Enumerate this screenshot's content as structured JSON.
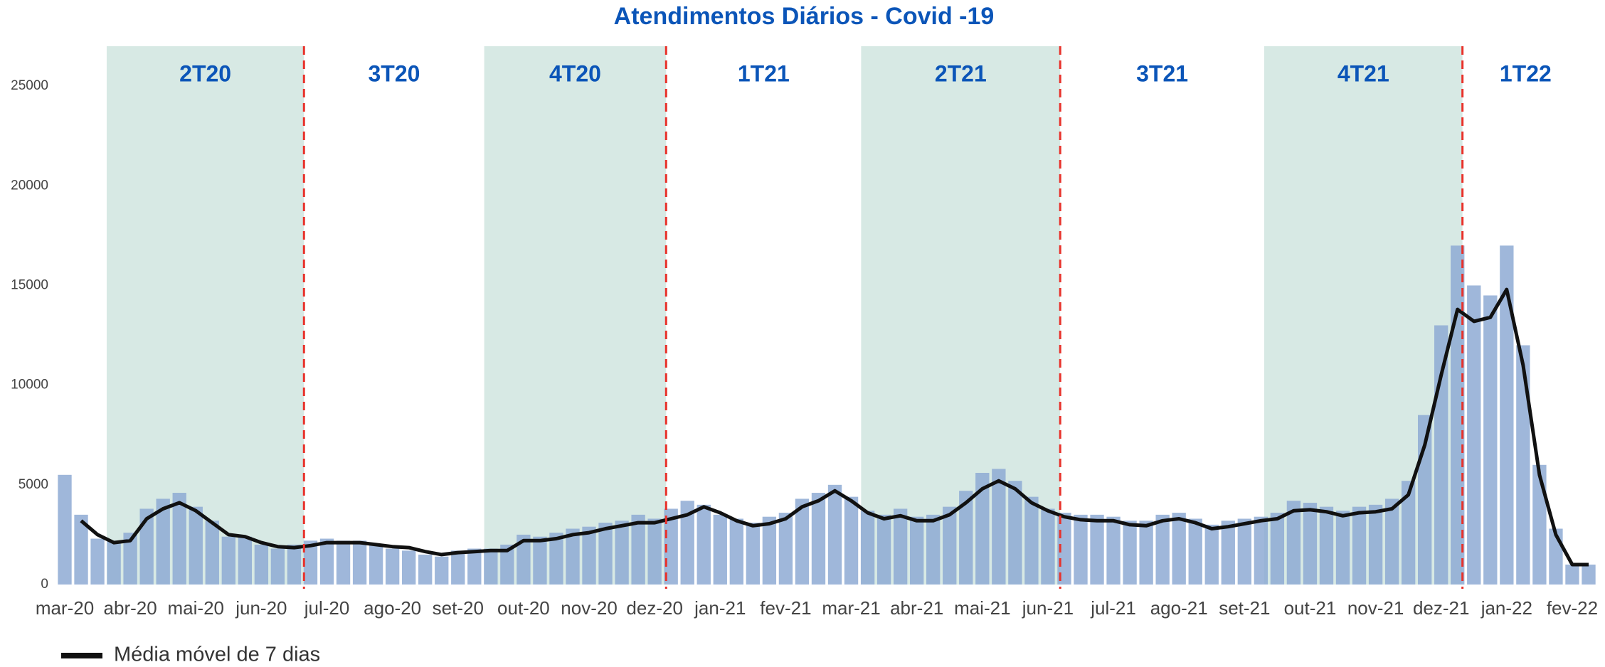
{
  "chart_data": {
    "type": "bar",
    "title": "Atendimentos Diários - Covid -19",
    "categories": [
      "mar-20",
      null,
      null,
      null,
      "abr-20",
      null,
      null,
      null,
      "mai-20",
      null,
      null,
      null,
      "jun-20",
      null,
      null,
      null,
      "jul-20",
      null,
      null,
      null,
      "ago-20",
      null,
      null,
      null,
      "set-20",
      null,
      null,
      null,
      "out-20",
      null,
      null,
      null,
      "nov-20",
      null,
      null,
      null,
      "dez-20",
      null,
      null,
      null,
      "jan-21",
      null,
      null,
      null,
      "fev-21",
      null,
      null,
      null,
      "mar-21",
      null,
      null,
      null,
      "abr-21",
      null,
      null,
      null,
      "mai-21",
      null,
      null,
      null,
      "jun-21",
      null,
      null,
      null,
      "jul-21",
      null,
      null,
      null,
      "ago-21",
      null,
      null,
      null,
      "set-21",
      null,
      null,
      null,
      "out-21",
      null,
      null,
      null,
      "nov-21",
      null,
      null,
      null,
      "dez-21",
      null,
      null,
      null,
      "jan-22",
      null,
      null,
      null,
      "fev-22",
      null
    ],
    "series": [
      {
        "type": "bar",
        "color": "#8eaad3",
        "values": [
          5500,
          3500,
          2300,
          2200,
          2600,
          3800,
          4300,
          4600,
          3900,
          3200,
          2400,
          2400,
          2000,
          1800,
          2000,
          2200,
          2300,
          2200,
          2200,
          2000,
          1800,
          1700,
          1500,
          1400,
          1700,
          1800,
          1800,
          2000,
          2500,
          2400,
          2600,
          2800,
          2900,
          3100,
          3200,
          3500,
          3300,
          3800,
          4200,
          4000,
          3500,
          3300,
          3100,
          3400,
          3600,
          4300,
          4600,
          5000,
          4400,
          3700,
          3500,
          3800,
          3400,
          3500,
          3900,
          4700,
          5600,
          5800,
          5200,
          4400,
          3800,
          3600,
          3500,
          3500,
          3400,
          3200,
          3200,
          3500,
          3600,
          3300,
          3000,
          3200,
          3300,
          3400,
          3600,
          4200,
          4100,
          3900,
          3700,
          3900,
          4000,
          4300,
          5200,
          8500,
          13000,
          17000,
          15000,
          14500,
          17000,
          12000,
          6000,
          2800,
          1000,
          1000
        ]
      },
      {
        "type": "line",
        "name": "Média móvel de 7 dias",
        "color": "#111111",
        "values": [
          null,
          3200,
          2500,
          2100,
          2200,
          3300,
          3800,
          4100,
          3700,
          3100,
          2500,
          2400,
          2100,
          1900,
          1850,
          1950,
          2100,
          2100,
          2100,
          2000,
          1900,
          1850,
          1650,
          1500,
          1600,
          1650,
          1700,
          1700,
          2200,
          2200,
          2300,
          2500,
          2600,
          2800,
          2950,
          3100,
          3100,
          3300,
          3500,
          3900,
          3600,
          3200,
          2950,
          3050,
          3300,
          3900,
          4200,
          4700,
          4200,
          3600,
          3300,
          3450,
          3200,
          3200,
          3500,
          4100,
          4800,
          5200,
          4800,
          4100,
          3700,
          3400,
          3250,
          3200,
          3200,
          3000,
          2950,
          3200,
          3300,
          3100,
          2800,
          2900,
          3050,
          3200,
          3300,
          3700,
          3750,
          3650,
          3450,
          3600,
          3650,
          3800,
          4500,
          7000,
          10500,
          13800,
          13200,
          13400,
          14800,
          11000,
          5500,
          2500,
          1000,
          1000
        ]
      }
    ],
    "ylim": [
      0,
      27000
    ],
    "yticks": [
      0,
      5000,
      10000,
      15000,
      20000,
      25000
    ],
    "periods": [
      {
        "label": "2T20",
        "start": 2.56,
        "end": 14.6,
        "shaded": true
      },
      {
        "label": "3T20",
        "start": 14.6,
        "end": 25.6,
        "shaded": false
      },
      {
        "label": "4T20",
        "start": 25.6,
        "end": 36.7,
        "shaded": true
      },
      {
        "label": "1T21",
        "start": 36.7,
        "end": 48.6,
        "shaded": false
      },
      {
        "label": "2T21",
        "start": 48.6,
        "end": 60.75,
        "shaded": true
      },
      {
        "label": "3T21",
        "start": 60.75,
        "end": 73.2,
        "shaded": false
      },
      {
        "label": "4T21",
        "start": 73.2,
        "end": 85.3,
        "shaded": true
      },
      {
        "label": "1T22",
        "start": 85.3,
        "end": 93,
        "shaded": false
      }
    ],
    "shade_color": "#d7e9e4",
    "divider_color": "#e8322b",
    "label_color": "#0b55b8"
  }
}
